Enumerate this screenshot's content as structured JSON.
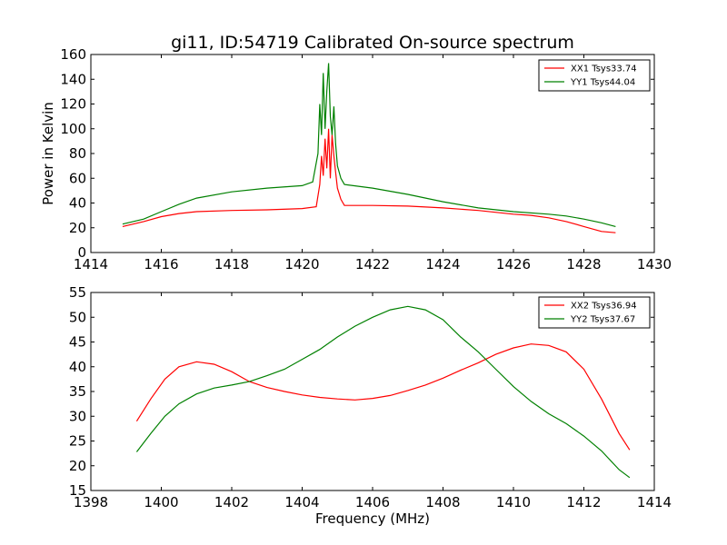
{
  "title": "gi11, ID:54719 Calibrated On-source spectrum",
  "chart_data": [
    {
      "type": "line",
      "panel": "top",
      "title": "gi11, ID:54719 Calibrated On-source spectrum",
      "xlabel": "",
      "ylabel": "Power in Kelvin",
      "xlim": [
        1414,
        1430
      ],
      "ylim": [
        0,
        160
      ],
      "xticks": [
        1414,
        1416,
        1418,
        1420,
        1422,
        1424,
        1426,
        1428,
        1430
      ],
      "yticks": [
        0,
        20,
        40,
        60,
        80,
        100,
        120,
        140,
        160
      ],
      "grid": false,
      "legend_position": "top-right",
      "series": [
        {
          "name": "XX1 Tsys33.74",
          "color": "#ff0000",
          "points": [
            [
              1414.9,
              21
            ],
            [
              1415.5,
              25
            ],
            [
              1416,
              29
            ],
            [
              1416.5,
              31.5
            ],
            [
              1417,
              33
            ],
            [
              1418,
              34
            ],
            [
              1419,
              34.5
            ],
            [
              1420,
              35.5
            ],
            [
              1420.4,
              37
            ],
            [
              1420.5,
              55
            ],
            [
              1420.55,
              78
            ],
            [
              1420.6,
              62
            ],
            [
              1420.65,
              92
            ],
            [
              1420.7,
              68
            ],
            [
              1420.75,
              100
            ],
            [
              1420.8,
              60
            ],
            [
              1420.85,
              95
            ],
            [
              1420.9,
              78
            ],
            [
              1420.95,
              65
            ],
            [
              1421.0,
              52
            ],
            [
              1421.1,
              43
            ],
            [
              1421.2,
              38
            ],
            [
              1422,
              38
            ],
            [
              1423,
              37.5
            ],
            [
              1424,
              36
            ],
            [
              1425,
              34
            ],
            [
              1426,
              31
            ],
            [
              1426.5,
              30
            ],
            [
              1427,
              28
            ],
            [
              1427.5,
              25
            ],
            [
              1428,
              21
            ],
            [
              1428.5,
              17
            ],
            [
              1428.9,
              16
            ]
          ]
        },
        {
          "name": "YY1 Tsys44.04",
          "color": "#008000",
          "points": [
            [
              1414.9,
              23
            ],
            [
              1415.5,
              27
            ],
            [
              1416,
              33
            ],
            [
              1416.5,
              39
            ],
            [
              1417,
              44
            ],
            [
              1418,
              49
            ],
            [
              1419,
              52
            ],
            [
              1420,
              54
            ],
            [
              1420.3,
              57
            ],
            [
              1420.45,
              80
            ],
            [
              1420.5,
              120
            ],
            [
              1420.55,
              95
            ],
            [
              1420.6,
              145
            ],
            [
              1420.65,
              100
            ],
            [
              1420.7,
              130
            ],
            [
              1420.75,
              153
            ],
            [
              1420.8,
              110
            ],
            [
              1420.85,
              95
            ],
            [
              1420.9,
              118
            ],
            [
              1420.95,
              88
            ],
            [
              1421.0,
              70
            ],
            [
              1421.1,
              60
            ],
            [
              1421.2,
              55
            ],
            [
              1422,
              52
            ],
            [
              1423,
              47
            ],
            [
              1424,
              41
            ],
            [
              1425,
              36
            ],
            [
              1426,
              33
            ],
            [
              1427,
              31
            ],
            [
              1427.5,
              29.5
            ],
            [
              1428,
              27
            ],
            [
              1428.5,
              24
            ],
            [
              1428.9,
              21
            ]
          ]
        }
      ]
    },
    {
      "type": "line",
      "panel": "bottom",
      "title": "",
      "xlabel": "Frequency (MHz)",
      "ylabel": "",
      "xlim": [
        1398,
        1414
      ],
      "ylim": [
        15,
        55
      ],
      "xticks": [
        1398,
        1400,
        1402,
        1404,
        1406,
        1408,
        1410,
        1412,
        1414
      ],
      "yticks": [
        15,
        20,
        25,
        30,
        35,
        40,
        45,
        50,
        55
      ],
      "grid": false,
      "legend_position": "top-right",
      "series": [
        {
          "name": "XX2 Tsys36.94",
          "color": "#ff0000",
          "points": [
            [
              1399.3,
              29
            ],
            [
              1399.7,
              33.5
            ],
            [
              1400.1,
              37.5
            ],
            [
              1400.5,
              40
            ],
            [
              1401,
              41
            ],
            [
              1401.5,
              40.5
            ],
            [
              1402,
              39
            ],
            [
              1402.5,
              37
            ],
            [
              1403,
              35.8
            ],
            [
              1403.5,
              35
            ],
            [
              1404,
              34.3
            ],
            [
              1404.5,
              33.8
            ],
            [
              1405,
              33.5
            ],
            [
              1405.5,
              33.3
            ],
            [
              1406,
              33.6
            ],
            [
              1406.5,
              34.2
            ],
            [
              1407,
              35.2
            ],
            [
              1407.5,
              36.3
            ],
            [
              1408,
              37.7
            ],
            [
              1408.5,
              39.3
            ],
            [
              1409,
              40.8
            ],
            [
              1409.5,
              42.5
            ],
            [
              1410,
              43.8
            ],
            [
              1410.5,
              44.6
            ],
            [
              1411,
              44.3
            ],
            [
              1411.5,
              43
            ],
            [
              1412,
              39.5
            ],
            [
              1412.5,
              33.5
            ],
            [
              1413,
              26.5
            ],
            [
              1413.3,
              23.2
            ]
          ]
        },
        {
          "name": "YY2 Tsys37.67",
          "color": "#008000",
          "points": [
            [
              1399.3,
              22.8
            ],
            [
              1399.7,
              26.5
            ],
            [
              1400.1,
              30
            ],
            [
              1400.5,
              32.5
            ],
            [
              1401,
              34.5
            ],
            [
              1401.5,
              35.7
            ],
            [
              1402,
              36.3
            ],
            [
              1402.5,
              37
            ],
            [
              1403,
              38.2
            ],
            [
              1403.5,
              39.5
            ],
            [
              1404,
              41.5
            ],
            [
              1404.5,
              43.5
            ],
            [
              1405,
              46
            ],
            [
              1405.5,
              48.2
            ],
            [
              1406,
              50
            ],
            [
              1406.5,
              51.5
            ],
            [
              1407,
              52.2
            ],
            [
              1407.5,
              51.5
            ],
            [
              1408,
              49.5
            ],
            [
              1408.5,
              46
            ],
            [
              1409,
              43
            ],
            [
              1409.5,
              39.5
            ],
            [
              1410,
              36
            ],
            [
              1410.5,
              33
            ],
            [
              1411,
              30.5
            ],
            [
              1411.5,
              28.5
            ],
            [
              1412,
              26
            ],
            [
              1412.5,
              23
            ],
            [
              1413,
              19.2
            ],
            [
              1413.3,
              17.6
            ]
          ]
        }
      ]
    }
  ]
}
